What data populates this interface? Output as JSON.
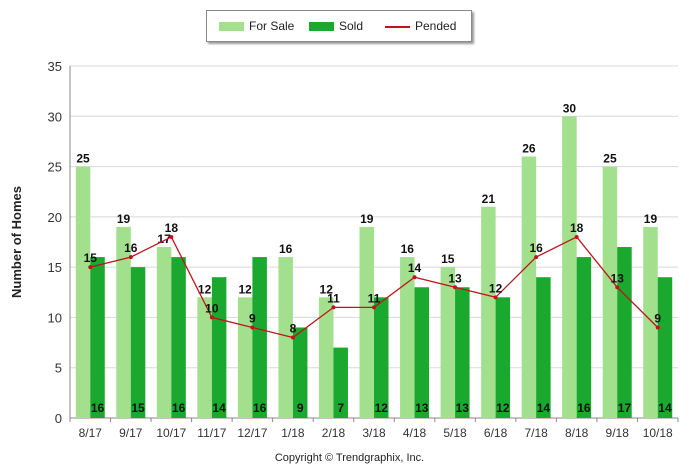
{
  "legend": {
    "for_sale": "For Sale",
    "sold": "Sold",
    "pended": "Pended"
  },
  "footer": {
    "copyright": "Copyright © Trendgraphix, Inc."
  },
  "colors": {
    "for_sale": "#a3e08e",
    "sold": "#1aa82e",
    "pended": "#c0141c"
  },
  "chart_data": {
    "type": "bar",
    "title": "",
    "xlabel": "",
    "ylabel": "Number of Homes",
    "ylim": [
      0,
      35
    ],
    "yticks": [
      0,
      5,
      10,
      15,
      20,
      25,
      30,
      35
    ],
    "grid": true,
    "legend_position": "top-center",
    "categories": [
      "8/17",
      "9/17",
      "10/17",
      "11/17",
      "12/17",
      "1/18",
      "2/18",
      "3/18",
      "4/18",
      "5/18",
      "6/18",
      "7/18",
      "8/18",
      "9/18",
      "10/18"
    ],
    "series": [
      {
        "name": "For Sale",
        "type": "bar",
        "values": [
          25,
          19,
          17,
          12,
          12,
          16,
          12,
          19,
          16,
          15,
          21,
          26,
          30,
          25,
          19
        ]
      },
      {
        "name": "Sold",
        "type": "bar",
        "values": [
          16,
          15,
          16,
          14,
          16,
          9,
          7,
          12,
          13,
          13,
          12,
          14,
          16,
          17,
          14
        ]
      },
      {
        "name": "Pended",
        "type": "line",
        "values": [
          15,
          16,
          18,
          10,
          9,
          8,
          11,
          11,
          14,
          13,
          12,
          16,
          18,
          13,
          9
        ]
      }
    ]
  }
}
